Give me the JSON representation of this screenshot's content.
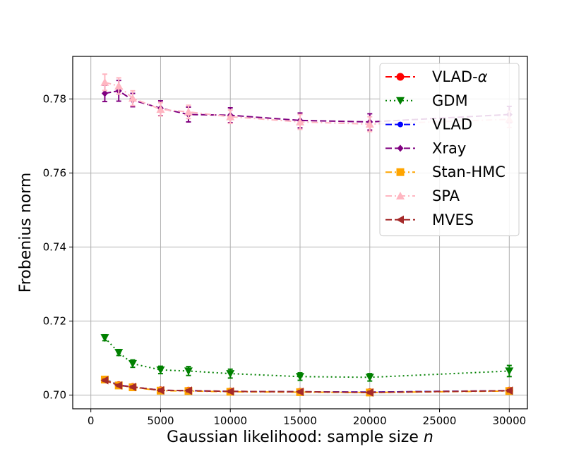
{
  "chart_data": {
    "type": "line",
    "title": "",
    "xlabel": "Gaussian likelihood: sample size ",
    "xlabel_italic": "n",
    "ylabel": "Frobenius norm",
    "xlim": [
      -1300,
      31300
    ],
    "ylim": [
      0.6963,
      0.7915
    ],
    "xticks": [
      0,
      5000,
      10000,
      15000,
      20000,
      25000,
      30000
    ],
    "xtick_labels": [
      "0",
      "5000",
      "10000",
      "15000",
      "20000",
      "25000",
      "30000"
    ],
    "yticks": [
      0.7,
      0.72,
      0.74,
      0.76,
      0.78
    ],
    "ytick_labels": [
      "0.70",
      "0.72",
      "0.74",
      "0.76",
      "0.78"
    ],
    "grid": true,
    "legend_position": "top-right",
    "x": [
      1000,
      2000,
      3000,
      5000,
      7000,
      10000,
      15000,
      20000,
      30000
    ],
    "series": [
      {
        "name": "VLAD-",
        "name_italic": "α",
        "color": "#ff0000",
        "marker": "circle",
        "linestyle": "dashed",
        "values": [
          0.7042,
          0.7027,
          0.7022,
          0.7013,
          0.7012,
          0.701,
          0.7009,
          0.7008,
          0.7012
        ],
        "errors": [
          0.0005,
          0.0005,
          0.0004,
          0.0004,
          0.0004,
          0.0004,
          0.0004,
          0.0004,
          0.0004
        ]
      },
      {
        "name": "GDM",
        "name_italic": "",
        "color": "#008000",
        "marker": "triangle-down",
        "linestyle": "dotted",
        "values": [
          0.7155,
          0.7115,
          0.7085,
          0.7068,
          0.7065,
          0.7058,
          0.705,
          0.7048,
          0.7065
        ],
        "errors": [
          0.0008,
          0.0008,
          0.001,
          0.001,
          0.0012,
          0.0012,
          0.001,
          0.001,
          0.0015
        ]
      },
      {
        "name": "VLAD",
        "name_italic": "",
        "color": "#0000ff",
        "marker": "circle-small",
        "linestyle": "dashed",
        "values": [
          0.7043,
          0.7027,
          0.7022,
          0.7013,
          0.7012,
          0.701,
          0.7009,
          0.7008,
          0.7012
        ],
        "errors": [
          0.0004,
          0.0004,
          0.0004,
          0.0004,
          0.0004,
          0.0004,
          0.0004,
          0.0004,
          0.0004
        ]
      },
      {
        "name": "Xray",
        "name_italic": "",
        "color": "#800080",
        "marker": "diamond",
        "linestyle": "dashed",
        "values": [
          0.7815,
          0.7822,
          0.7797,
          0.7775,
          0.7758,
          0.7756,
          0.7742,
          0.7738,
          0.7758
        ],
        "errors": [
          0.0022,
          0.0028,
          0.0018,
          0.002,
          0.002,
          0.002,
          0.002,
          0.0022,
          0.0022
        ]
      },
      {
        "name": "Stan-HMC",
        "name_italic": "",
        "color": "#ffa500",
        "marker": "square",
        "linestyle": "dashdot",
        "values": [
          0.7042,
          0.7026,
          0.7021,
          0.7012,
          0.7011,
          0.7009,
          0.7008,
          0.7007,
          0.7011
        ],
        "errors": [
          0.0004,
          0.0004,
          0.0004,
          0.0004,
          0.0004,
          0.0004,
          0.0004,
          0.0004,
          0.0004
        ]
      },
      {
        "name": "SPA",
        "name_italic": "",
        "color": "#ffb6c1",
        "marker": "triangle-up",
        "linestyle": "dashdot",
        "values": [
          0.7845,
          0.7835,
          0.7802,
          0.7772,
          0.7765,
          0.7752,
          0.7738,
          0.7732,
          0.7745
        ],
        "errors": [
          0.0022,
          0.0022,
          0.002,
          0.0018,
          0.0018,
          0.0018,
          0.002,
          0.002,
          0.0022
        ]
      },
      {
        "name": "MVES",
        "name_italic": "",
        "color": "#a52a2a",
        "marker": "triangle-left",
        "linestyle": "dashed",
        "values": [
          0.704,
          0.7026,
          0.7022,
          0.7013,
          0.7012,
          0.701,
          0.7009,
          0.7007,
          0.7012
        ],
        "errors": [
          0.0003,
          0.0003,
          0.0003,
          0.0003,
          0.0003,
          0.0003,
          0.0003,
          0.0003,
          0.0003
        ]
      }
    ]
  }
}
